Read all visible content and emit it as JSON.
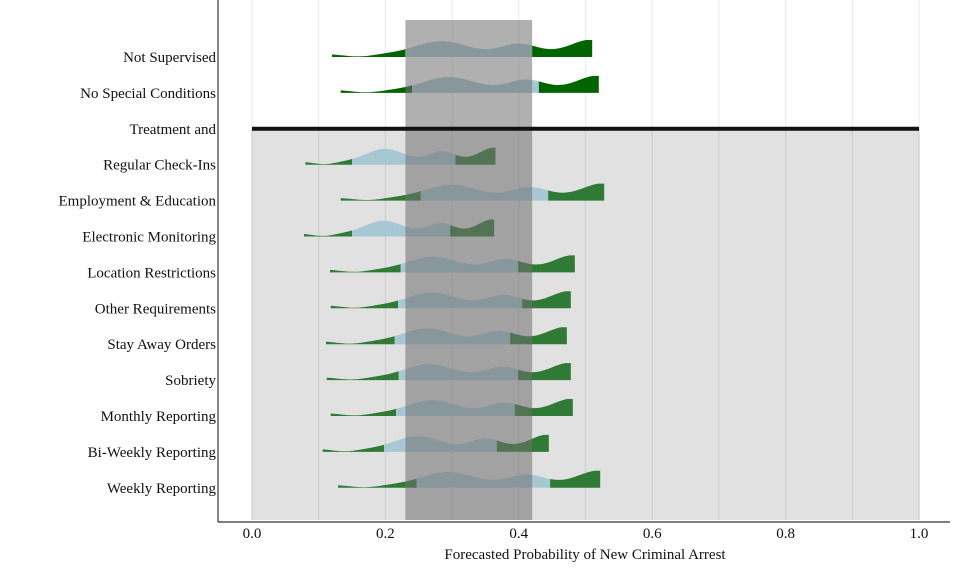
{
  "chart_data": {
    "type": "ridgeline",
    "title": "",
    "xlabel": "Forecasted Probability of New Criminal Arrest",
    "ylabel": "",
    "xlim": [
      0.0,
      1.0
    ],
    "xticks": [
      "0.0",
      "0.2",
      "0.4",
      "0.6",
      "0.8",
      "1.0"
    ],
    "grid": true,
    "highlight_band": [
      0.23,
      0.42
    ],
    "separator_label": "Treatment and",
    "colors": {
      "tail_top": "#006400",
      "tail_bottom": "#2f7a35",
      "middle": "#a7c8d3",
      "band": "#707070",
      "lower_panel": "#e1e1e1"
    },
    "rows": [
      {
        "label": "Not Supervised",
        "group": "top",
        "min": 0.12,
        "lower": 0.23,
        "upper": 0.42,
        "max": 0.51
      },
      {
        "label": "No Special Conditions",
        "group": "top",
        "min": 0.133,
        "lower": 0.24,
        "upper": 0.43,
        "max": 0.52
      },
      {
        "label": "Regular Check-Ins",
        "group": "bottom",
        "min": 0.08,
        "lower": 0.15,
        "upper": 0.305,
        "max": 0.365
      },
      {
        "label": "Employment & Education",
        "group": "bottom",
        "min": 0.133,
        "lower": 0.253,
        "upper": 0.444,
        "max": 0.528
      },
      {
        "label": "Electronic Monitoring",
        "group": "bottom",
        "min": 0.078,
        "lower": 0.15,
        "upper": 0.297,
        "max": 0.363
      },
      {
        "label": "Location Restrictions",
        "group": "bottom",
        "min": 0.117,
        "lower": 0.223,
        "upper": 0.399,
        "max": 0.484
      },
      {
        "label": "Other Requirements",
        "group": "bottom",
        "min": 0.118,
        "lower": 0.219,
        "upper": 0.405,
        "max": 0.478
      },
      {
        "label": "Stay Away Orders",
        "group": "bottom",
        "min": 0.111,
        "lower": 0.214,
        "upper": 0.387,
        "max": 0.472
      },
      {
        "label": "Sobriety",
        "group": "bottom",
        "min": 0.112,
        "lower": 0.22,
        "upper": 0.399,
        "max": 0.478
      },
      {
        "label": "Monthly Reporting",
        "group": "bottom",
        "min": 0.118,
        "lower": 0.216,
        "upper": 0.394,
        "max": 0.481
      },
      {
        "label": "Bi-Weekly Reporting",
        "group": "bottom",
        "min": 0.106,
        "lower": 0.198,
        "upper": 0.367,
        "max": 0.445
      },
      {
        "label": "Weekly Reporting",
        "group": "bottom",
        "min": 0.129,
        "lower": 0.247,
        "upper": 0.447,
        "max": 0.522
      }
    ]
  }
}
